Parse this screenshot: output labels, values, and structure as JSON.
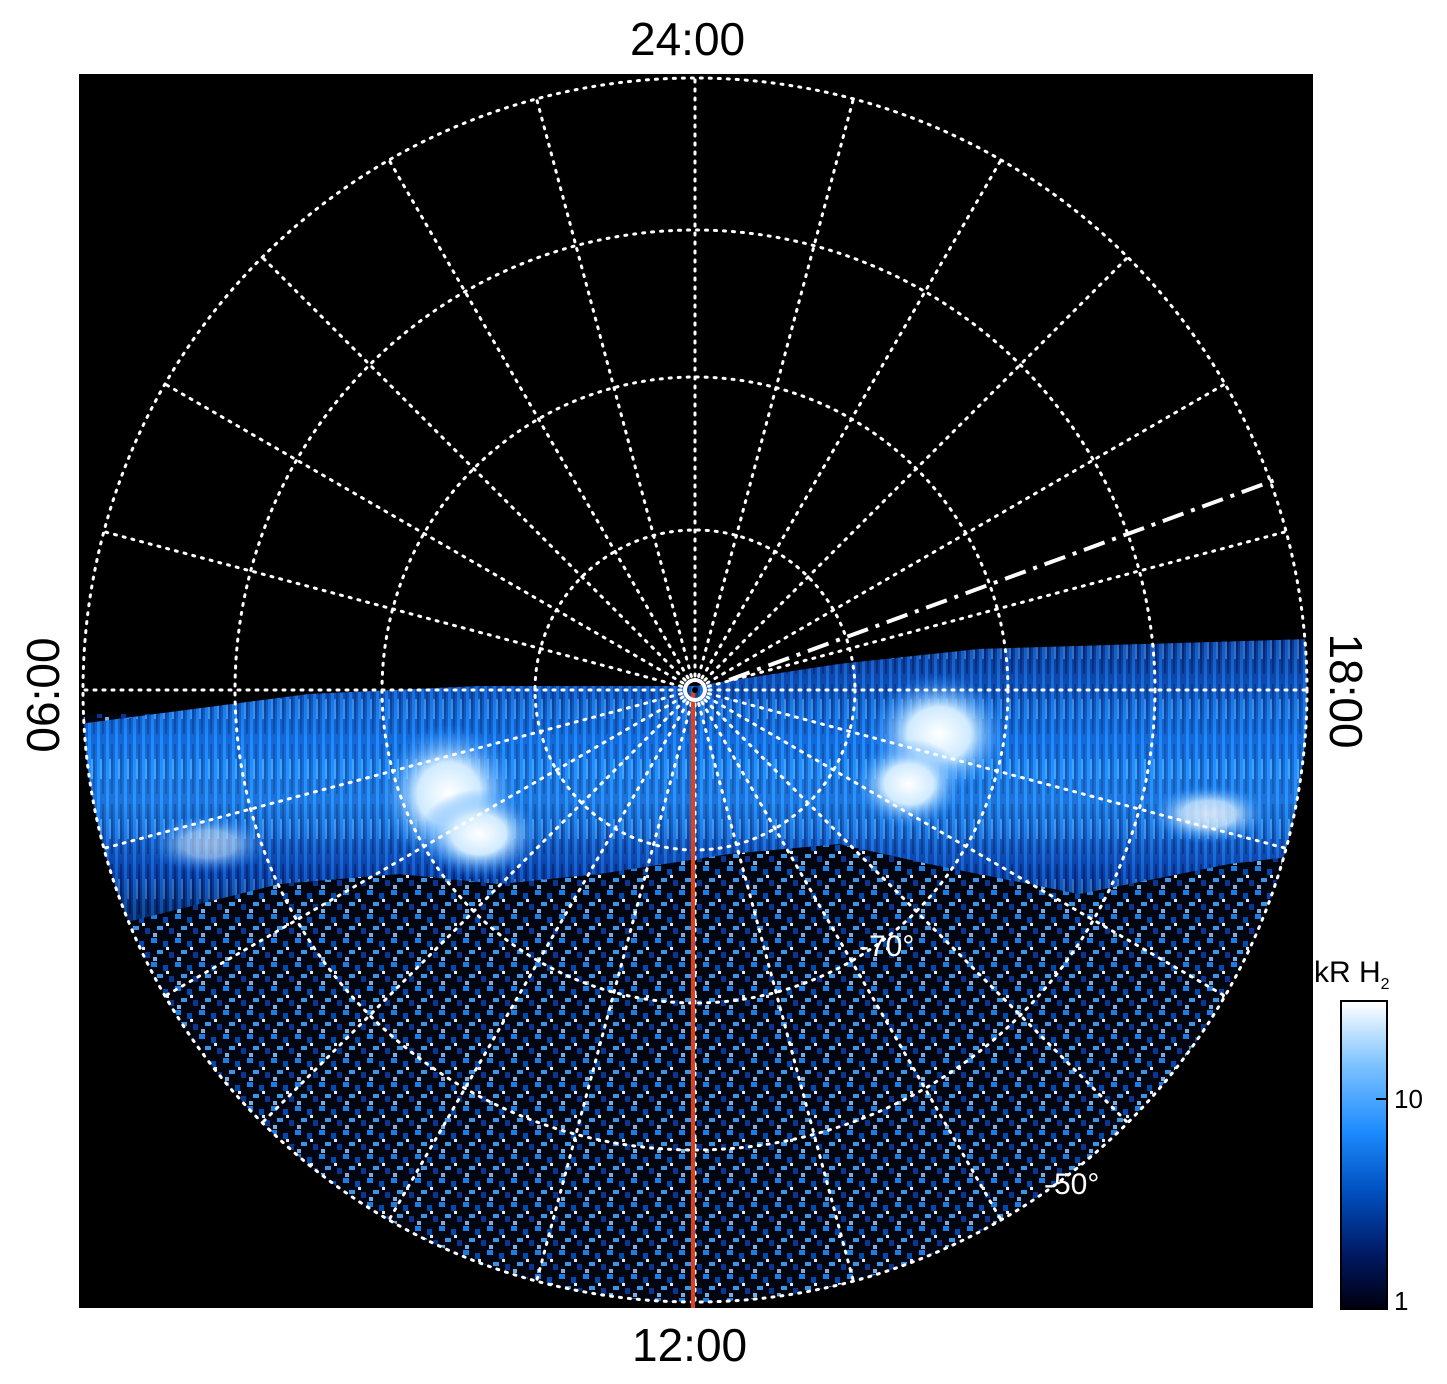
{
  "axes": {
    "top": "24:00",
    "bottom": "12:00",
    "left": "06:00",
    "right": "18:00"
  },
  "latitude_labels": [
    "-70°",
    "-50°"
  ],
  "colorbar": {
    "title_main": "kR H",
    "title_sub": "2",
    "ticks": [
      "10",
      "1"
    ],
    "scale": "log",
    "range": [
      1,
      30
    ]
  },
  "colors": {
    "background": "#000000",
    "grid": "#ffffff",
    "noon_line": "#e0401a",
    "colormap": [
      "#000010",
      "#001a66",
      "#0050c0",
      "#1e8cff",
      "#9fd4ff",
      "#ffffff"
    ]
  }
}
